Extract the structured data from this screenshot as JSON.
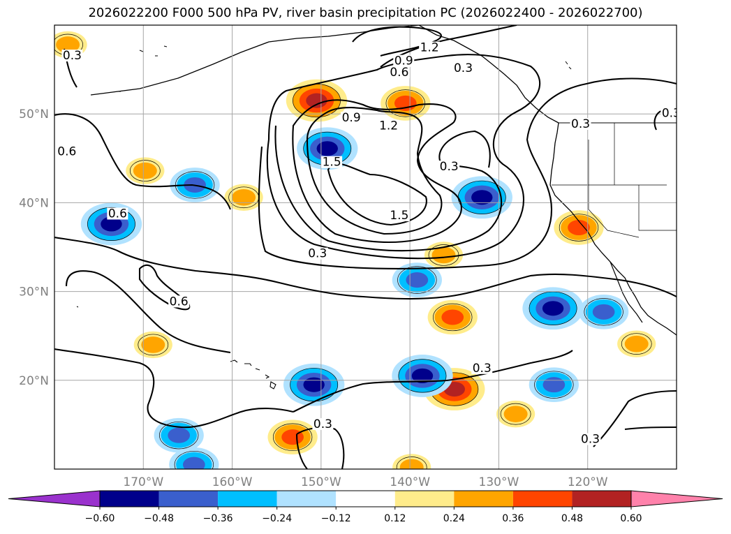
{
  "title": "2026022200 F000 500 hPa PV, river basin precipitation PC (2026022400 - 2026022700)",
  "chart_data": {
    "type": "contour map",
    "projection": "Cartopy PlateCarree",
    "x_label": "",
    "y_label": "",
    "lon_range": [
      -180,
      -110
    ],
    "lat_range": [
      10,
      60
    ],
    "lon_ticks": [
      -170,
      -160,
      -150,
      -140,
      -130,
      -120
    ],
    "lon_tick_labels": [
      "170°W",
      "160°W",
      "150°W",
      "140°W",
      "130°W",
      "120°W"
    ],
    "lat_ticks": [
      20,
      30,
      40,
      50
    ],
    "lat_tick_labels": [
      "20°N",
      "30°N",
      "40°N",
      "50°N"
    ],
    "grid": true,
    "contour_field": "500 hPa PV",
    "contour_levels_shown": [
      0.3,
      0.6,
      0.9,
      1.2,
      1.5
    ],
    "contour_labels": [
      {
        "text": "0.3",
        "lon": -178,
        "lat": 56.3
      },
      {
        "text": "1.2",
        "lon": -137.8,
        "lat": 57.2
      },
      {
        "text": "0.9",
        "lon": -140.7,
        "lat": 55.7
      },
      {
        "text": "0.6",
        "lon": -141.2,
        "lat": 54.4
      },
      {
        "text": "0.3",
        "lon": -134,
        "lat": 54.9
      },
      {
        "text": "0.3",
        "lon": -110.6,
        "lat": 49.8
      },
      {
        "text": "0.3",
        "lon": -120.8,
        "lat": 48.6
      },
      {
        "text": "0.9",
        "lon": -146.6,
        "lat": 49.3
      },
      {
        "text": "1.2",
        "lon": -142.4,
        "lat": 48.4
      },
      {
        "text": "0.6",
        "lon": -178.6,
        "lat": 45.5
      },
      {
        "text": "1.5",
        "lon": -148.8,
        "lat": 44.3
      },
      {
        "text": "0.3",
        "lon": -135.6,
        "lat": 43.8
      },
      {
        "text": "0.6",
        "lon": -172.9,
        "lat": 38.5
      },
      {
        "text": "1.5",
        "lon": -141.2,
        "lat": 38.3
      },
      {
        "text": "0.3",
        "lon": -150.4,
        "lat": 34.0
      },
      {
        "text": "0.6",
        "lon": -166,
        "lat": 28.6
      },
      {
        "text": "0.3",
        "lon": -131.9,
        "lat": 21.1
      },
      {
        "text": "0.3",
        "lon": -149.8,
        "lat": 14.8
      },
      {
        "text": "0.3",
        "lon": -119.7,
        "lat": 13.1
      }
    ],
    "shading_field": "river basin precipitation PC",
    "colorbar": {
      "extend": "both",
      "levels": [
        -0.72,
        -0.6,
        -0.48,
        -0.36,
        -0.24,
        -0.12,
        0.12,
        0.24,
        0.36,
        0.48,
        0.6,
        0.72
      ],
      "tick_labels": [
        "−0.60",
        "−0.48",
        "−0.36",
        "−0.24",
        "−0.12",
        "0.12",
        "0.24",
        "0.36",
        "0.48",
        "0.60"
      ],
      "colors": [
        "#9a32cd",
        "#00008b",
        "#3a5fcd",
        "#00bfff",
        "#b0e2ff",
        "#ffffff",
        "#ffec8b",
        "#ffa500",
        "#ff4500",
        "#b22222",
        "#ff82ab"
      ],
      "under_color": "#9a32cd",
      "over_color": "#ff82ab"
    },
    "positive_anomalies": [
      {
        "lon": -150.5,
        "lat": 51.5,
        "peak": 0.48
      },
      {
        "lon": -140.5,
        "lat": 51.2,
        "peak": 0.36
      },
      {
        "lon": -178.5,
        "lat": 57.8,
        "peak": 0.24
      },
      {
        "lon": -169.8,
        "lat": 43.6,
        "peak": 0.24
      },
      {
        "lon": -158.7,
        "lat": 40.6,
        "peak": 0.24
      },
      {
        "lon": -121.0,
        "lat": 37.2,
        "peak": 0.36
      },
      {
        "lon": -136.2,
        "lat": 34.1,
        "peak": 0.24
      },
      {
        "lon": -135.2,
        "lat": 27.1,
        "peak": 0.36
      },
      {
        "lon": -168.9,
        "lat": 24.0,
        "peak": 0.24
      },
      {
        "lon": -114.5,
        "lat": 24.1,
        "peak": 0.24
      },
      {
        "lon": -135.0,
        "lat": 19.0,
        "peak": 0.48
      },
      {
        "lon": -128.1,
        "lat": 16.2,
        "peak": 0.24
      },
      {
        "lon": -153.2,
        "lat": 13.6,
        "peak": 0.36
      },
      {
        "lon": -139.8,
        "lat": 10.2,
        "peak": 0.24
      }
    ],
    "negative_anomalies": [
      {
        "lon": -149.3,
        "lat": 46.1,
        "peak": -0.48
      },
      {
        "lon": -131.9,
        "lat": 40.6,
        "peak": -0.48
      },
      {
        "lon": -173.6,
        "lat": 37.6,
        "peak": -0.48
      },
      {
        "lon": -164.2,
        "lat": 42.0,
        "peak": -0.36
      },
      {
        "lon": -139.2,
        "lat": 31.3,
        "peak": -0.36
      },
      {
        "lon": -123.9,
        "lat": 28.1,
        "peak": -0.48
      },
      {
        "lon": -150.8,
        "lat": 19.5,
        "peak": -0.48
      },
      {
        "lon": -138.6,
        "lat": 20.5,
        "peak": -0.48
      },
      {
        "lon": -123.8,
        "lat": 19.5,
        "peak": -0.36
      },
      {
        "lon": -164.3,
        "lat": 10.5,
        "peak": -0.36
      },
      {
        "lon": -166.0,
        "lat": 13.8,
        "peak": -0.36
      },
      {
        "lon": -118.2,
        "lat": 27.7,
        "peak": -0.36
      }
    ]
  }
}
